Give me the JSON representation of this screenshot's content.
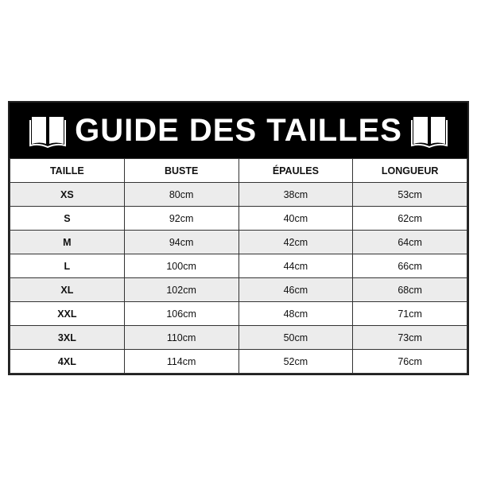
{
  "title": "GUIDE DES TAILLES",
  "icons": [
    "open-book-icon",
    "open-book-icon"
  ],
  "headers": [
    "TAILLE",
    "BUSTE",
    "ÉPAULES",
    "LONGUEUR"
  ],
  "rows": [
    [
      "XS",
      "80cm",
      "38cm",
      "53cm"
    ],
    [
      "S",
      "92cm",
      "40cm",
      "62cm"
    ],
    [
      "M",
      "94cm",
      "42cm",
      "64cm"
    ],
    [
      "L",
      "100cm",
      "44cm",
      "66cm"
    ],
    [
      "XL",
      "102cm",
      "46cm",
      "68cm"
    ],
    [
      "XXL",
      "106cm",
      "48cm",
      "71cm"
    ],
    [
      "3XL",
      "110cm",
      "50cm",
      "73cm"
    ],
    [
      "4XL",
      "114cm",
      "52cm",
      "76cm"
    ]
  ]
}
